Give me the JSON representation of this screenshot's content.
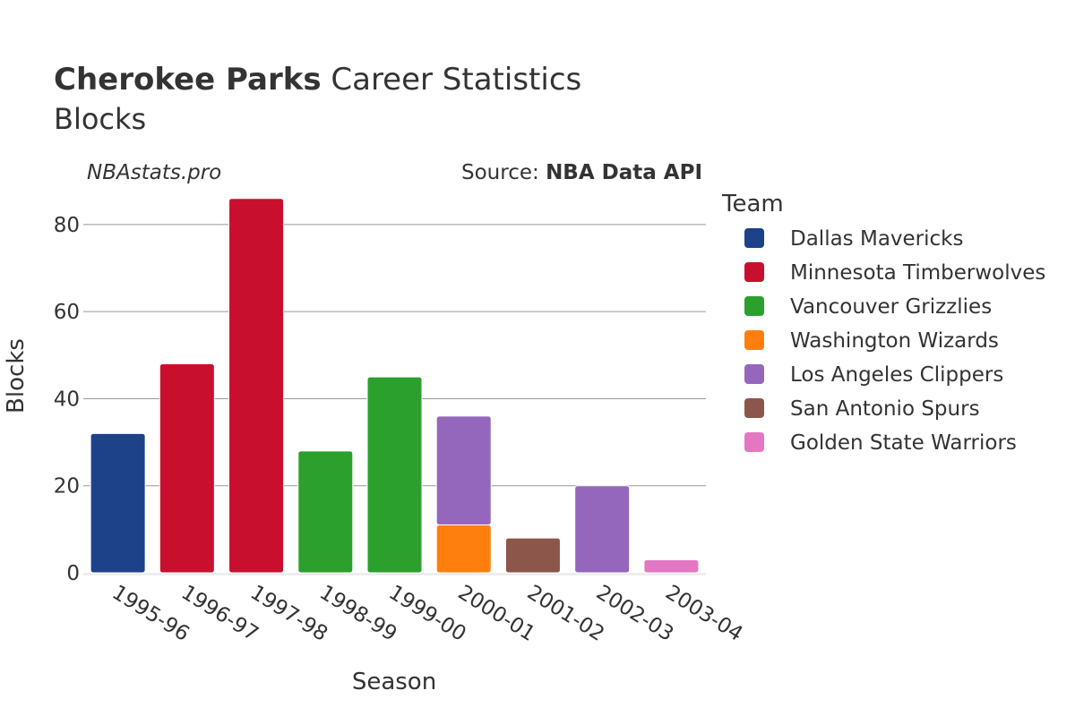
{
  "title": {
    "player": "Cherokee Parks",
    "rest": " Career Statistics",
    "line2": "Blocks"
  },
  "watermark": "NBAstats.pro",
  "source": {
    "prefix": "Source: ",
    "name": "NBA Data API"
  },
  "legend": {
    "title": "Team"
  },
  "colors": {
    "Dallas Mavericks": "#1d428a",
    "Minnesota Timberwolves": "#c8102e",
    "Vancouver Grizzlies": "#2ca02c",
    "Washington Wizards": "#ff7f0e",
    "Los Angeles Clippers": "#9467bd",
    "San Antonio Spurs": "#8c564b",
    "Golden State Warriors": "#e377c2"
  },
  "chart_data": {
    "type": "bar",
    "stacked": true,
    "categories": [
      "1995-96",
      "1996-97",
      "1997-98",
      "1998-99",
      "1999-00",
      "2000-01",
      "2001-02",
      "2002-03",
      "2003-04"
    ],
    "series": [
      {
        "name": "Dallas Mavericks",
        "values": [
          32,
          0,
          0,
          0,
          0,
          0,
          0,
          0,
          0
        ]
      },
      {
        "name": "Minnesota Timberwolves",
        "values": [
          0,
          48,
          86,
          0,
          0,
          0,
          0,
          0,
          0
        ]
      },
      {
        "name": "Vancouver Grizzlies",
        "values": [
          0,
          0,
          0,
          28,
          45,
          0,
          0,
          0,
          0
        ]
      },
      {
        "name": "Washington Wizards",
        "values": [
          0,
          0,
          0,
          0,
          0,
          11,
          0,
          0,
          0
        ]
      },
      {
        "name": "Los Angeles Clippers",
        "values": [
          0,
          0,
          0,
          0,
          0,
          25,
          0,
          20,
          0
        ]
      },
      {
        "name": "San Antonio Spurs",
        "values": [
          0,
          0,
          0,
          0,
          0,
          0,
          8,
          0,
          0
        ]
      },
      {
        "name": "Golden State Warriors",
        "values": [
          0,
          0,
          0,
          0,
          0,
          0,
          0,
          0,
          3
        ]
      }
    ],
    "xlabel": "Season",
    "ylabel": "Blocks",
    "ylim": [
      0,
      90
    ],
    "yticks": [
      0,
      20,
      40,
      60,
      80
    ],
    "grid": true,
    "legend_position": "right"
  }
}
